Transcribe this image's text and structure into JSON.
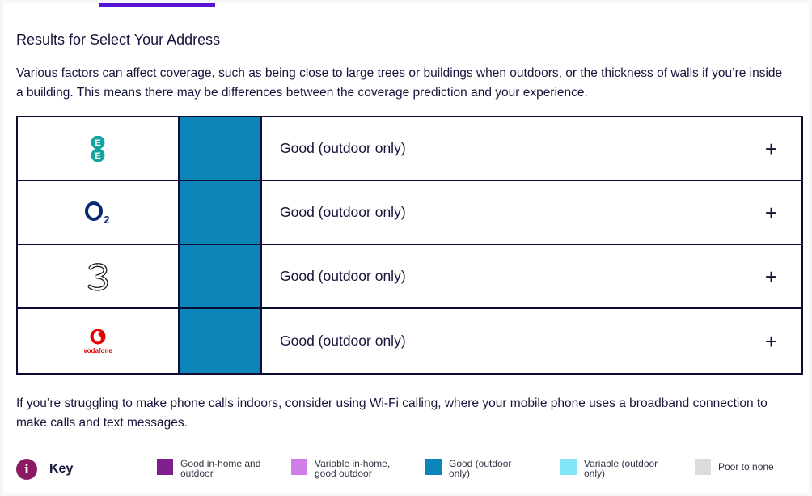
{
  "results": {
    "title": "Results for Select Your Address",
    "intro": "Various factors can affect coverage, such as being close to large trees or buildings when outdoors, or the thickness of walls if you’re inside a building. This means there may be differences between the coverage prediction and your experience."
  },
  "networks": [
    {
      "name": "EE",
      "logo_icon": "ee-logo-icon",
      "status": "Good (outdoor only)",
      "color": "#0c85b8",
      "expand": "+"
    },
    {
      "name": "O2",
      "logo_icon": "o2-logo-icon",
      "status": "Good (outdoor only)",
      "color": "#0c85b8",
      "expand": "+"
    },
    {
      "name": "Three",
      "logo_icon": "three-logo-icon",
      "status": "Good (outdoor only)",
      "color": "#0c85b8",
      "expand": "+"
    },
    {
      "name": "Vodafone",
      "logo_icon": "vodafone-logo-icon",
      "logo_text": "vodafone",
      "status": "Good (outdoor only)",
      "color": "#0c85b8",
      "expand": "+"
    }
  ],
  "footer": {
    "text": "If you’re struggling to make phone calls indoors, consider using Wi-Fi calling, where your mobile phone uses a broadband connection to make calls and text messages."
  },
  "key": {
    "label": "Key",
    "info_icon": "i",
    "items": [
      {
        "label": "Good in-home and outdoor",
        "color": "#7f1f8e"
      },
      {
        "label": "Variable in-home, good outdoor",
        "color": "#d17de8"
      },
      {
        "label": "Good (outdoor only)",
        "color": "#0c85b8"
      },
      {
        "label": "Variable (outdoor only)",
        "color": "#82e5f8"
      },
      {
        "label": "Poor to none",
        "color": "#dcdcdc"
      }
    ]
  }
}
